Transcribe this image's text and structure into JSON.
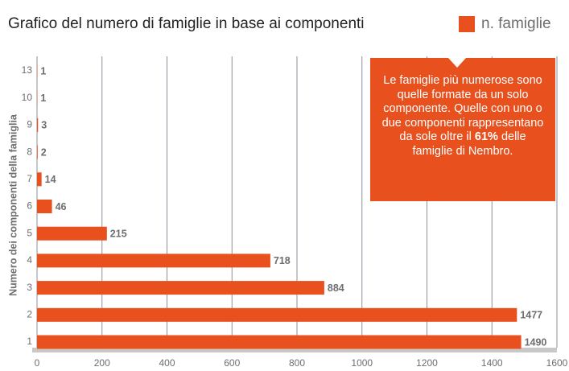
{
  "chart_data": {
    "type": "bar",
    "orientation": "horizontal",
    "title": "Grafico del numero di famiglie in base ai componenti",
    "y_label": "Numero dei componenti della famiglia",
    "legend": "n. famiglie",
    "color": "#e8501e",
    "categories": [
      "1",
      "2",
      "3",
      "4",
      "5",
      "6",
      "7",
      "8",
      "9",
      "10",
      "13"
    ],
    "values": [
      1490,
      1477,
      884,
      718,
      215,
      46,
      14,
      2,
      3,
      1,
      1
    ],
    "xlim": [
      0,
      1600
    ],
    "xticks": [
      0,
      200,
      400,
      600,
      800,
      1000,
      1200,
      1400,
      1600
    ],
    "grid": true,
    "annotation": {
      "before": "Le famiglie più numerose sono quelle formate da un solo componente. Quelle con uno o due componenti rappresentano da sole oltre il",
      "bold": "61%",
      "after": "delle famiglie di Nembro."
    }
  }
}
